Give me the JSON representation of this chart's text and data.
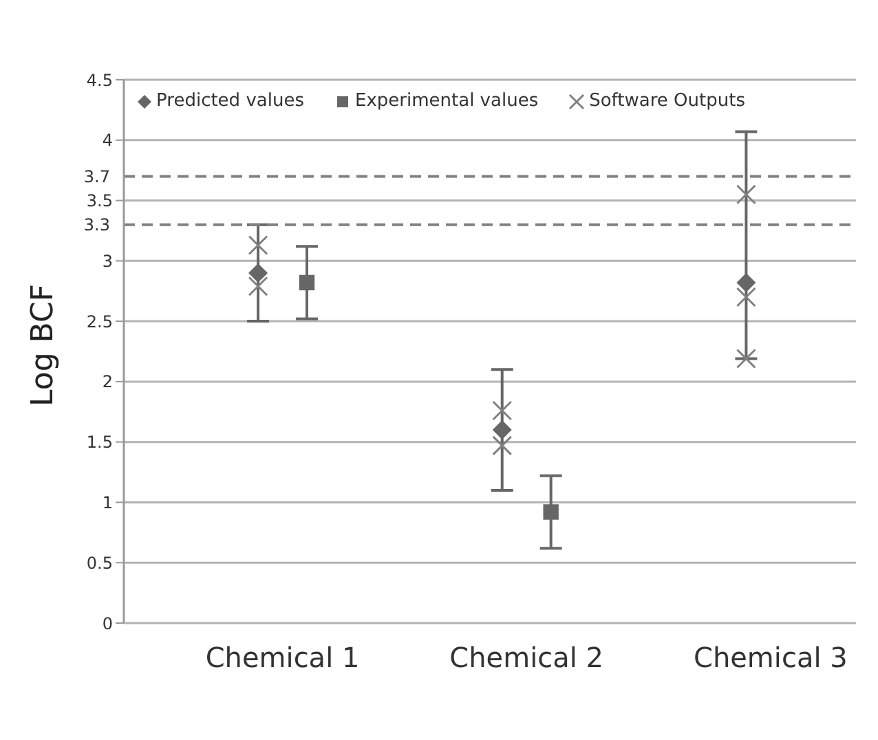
{
  "chart_data": {
    "type": "scatter",
    "ylabel": "Log BCF",
    "categories": [
      "Chemical 1",
      "Chemical 2",
      "Chemical 3"
    ],
    "series": [
      {
        "name": "Predicted values",
        "color": "#666666",
        "marker": "diamond",
        "values": [
          2.9,
          1.6,
          2.82
        ],
        "errors": [
          [
            2.5,
            3.3
          ],
          [
            1.1,
            2.1
          ],
          [
            2.19,
            4.07
          ]
        ]
      },
      {
        "name": "Experimental values",
        "color": "#666666",
        "marker": "square",
        "values": [
          2.82,
          0.92,
          null
        ],
        "errors": [
          [
            2.52,
            3.12
          ],
          [
            0.62,
            1.22
          ],
          null
        ]
      },
      {
        "name": "Software Outputs",
        "color": "#808080",
        "marker": "cross",
        "x": [
          "Chemical 1",
          "Chemical 1",
          "Chemical 2",
          "Chemical 2",
          "Chemical 3",
          "Chemical 3",
          "Chemical 3"
        ],
        "values": [
          3.13,
          2.79,
          1.76,
          1.47,
          3.55,
          2.7,
          2.19
        ]
      }
    ],
    "ylim": [
      0,
      4.5
    ],
    "yticks": [
      0,
      0.5,
      1,
      1.5,
      2,
      2.5,
      3,
      3.5,
      4,
      4.5
    ],
    "ref_lines": [
      {
        "axis": "y",
        "value": 3.3,
        "label": "3.3",
        "color": "#808080",
        "line_style": "dashed"
      },
      {
        "axis": "y",
        "value": 3.7,
        "label": "3.7",
        "color": "#808080",
        "line_style": "dashed"
      }
    ],
    "grid": "y",
    "legend": "top"
  }
}
